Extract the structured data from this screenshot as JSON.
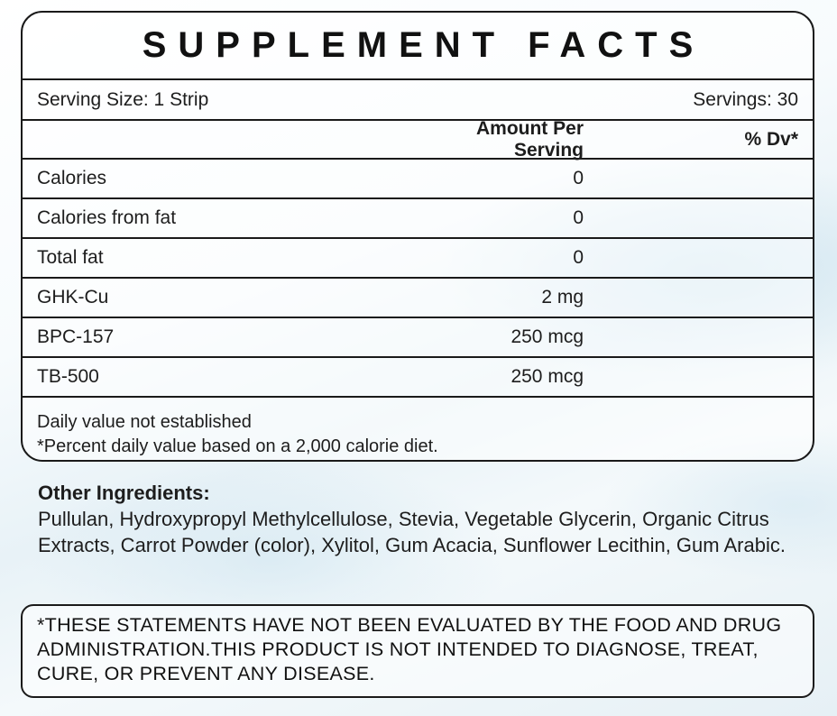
{
  "panel": {
    "title": "SUPPLEMENT FACTS",
    "serving_size": "Serving Size: 1 Strip",
    "servings": "Servings: 30",
    "header": {
      "amount": "Amount Per Serving",
      "dv": "% Dv*"
    },
    "rows": [
      {
        "name": "Calories",
        "amount": "0"
      },
      {
        "name": "Calories from fat",
        "amount": "0"
      },
      {
        "name": "Total fat",
        "amount": "0"
      },
      {
        "name": "GHK-Cu",
        "amount": "2 mg"
      },
      {
        "name": "BPC-157",
        "amount": "250 mcg"
      },
      {
        "name": "TB-500",
        "amount": "250 mcg"
      }
    ],
    "footnote_1": "Daily value not established",
    "footnote_2": "*Percent daily value based on a 2,000 calorie diet."
  },
  "other_ingredients": {
    "title": "Other Ingredients:",
    "text": "Pullulan, Hydroxypropyl Methylcellulose, Stevia, Vegetable Glycerin, Organic Citrus Extracts, Carrot Powder (color), Xylitol, Gum Acacia, Sunflower Lecithin, Gum Arabic."
  },
  "disclaimer": "*THESE STATEMENTS HAVE NOT BEEN EVALUATED BY THE FOOD AND DRUG ADMINISTRATION.THIS PRODUCT IS NOT INTENDED TO DIAGNOSE, TREAT, CURE, OR PREVENT ANY DISEASE."
}
